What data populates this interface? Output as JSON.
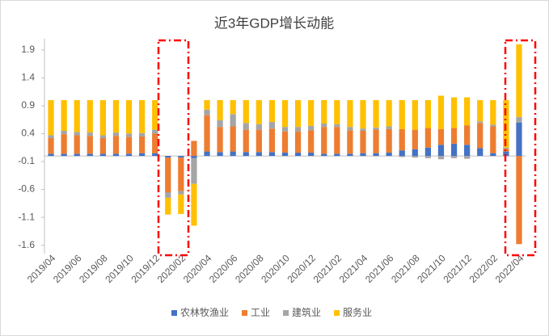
{
  "chart_data": {
    "type": "bar",
    "stacked": true,
    "title": "近3年GDP增长动能",
    "categories": [
      "2019/04",
      null,
      "2019/06",
      null,
      "2019/08",
      null,
      "2019/10",
      null,
      "2019/12",
      null,
      "2020/02",
      null,
      "2020/04",
      null,
      "2020/06",
      null,
      "2020/08",
      null,
      "2020/10",
      null,
      "2020/12",
      null,
      "2021/02",
      null,
      "2021/04",
      null,
      "2021/06",
      null,
      "2021/08",
      null,
      "2021/10",
      null,
      "2021/12",
      null,
      "2022/02",
      null,
      "2022/04"
    ],
    "series": [
      {
        "name": "农林牧渔业",
        "color": "#4472c4",
        "values": [
          0.04,
          0.04,
          0.04,
          0.04,
          0.04,
          0.04,
          0.04,
          0.05,
          0.05,
          -0.03,
          -0.03,
          -0.04,
          0.08,
          0.07,
          0.08,
          0.07,
          0.07,
          0.07,
          0.06,
          0.06,
          0.06,
          0.04,
          0.04,
          0.04,
          0.05,
          0.05,
          0.06,
          0.1,
          0.12,
          0.15,
          0.2,
          0.22,
          0.2,
          0.14,
          0.05,
          0.08,
          0.6
        ]
      },
      {
        "name": "工业",
        "color": "#ed7d31",
        "values": [
          0.28,
          0.35,
          0.33,
          0.32,
          0.28,
          0.32,
          0.3,
          0.3,
          0.35,
          -0.62,
          -0.6,
          0.27,
          0.65,
          0.45,
          0.45,
          0.4,
          0.4,
          0.42,
          0.38,
          0.38,
          0.4,
          0.48,
          0.48,
          0.42,
          0.4,
          0.42,
          0.42,
          0.38,
          0.35,
          0.35,
          0.28,
          0.28,
          0.35,
          0.45,
          0.48,
          0.05,
          -1.58
        ]
      },
      {
        "name": "建筑业",
        "color": "#a5a5a5",
        "values": [
          0.05,
          0.06,
          0.06,
          0.06,
          0.05,
          0.06,
          0.06,
          0.06,
          0.07,
          -0.1,
          -0.06,
          -0.46,
          0.1,
          0.12,
          0.22,
          0.12,
          0.1,
          0.12,
          0.08,
          0.08,
          0.08,
          0.06,
          0.05,
          0.06,
          0.04,
          0.04,
          0.05,
          -0.02,
          -0.03,
          -0.04,
          -0.06,
          -0.04,
          -0.05,
          0.03,
          0.03,
          0.02,
          0.1
        ]
      },
      {
        "name": "服务业",
        "color": "#ffc000",
        "values": [
          0.63,
          0.55,
          0.57,
          0.58,
          0.63,
          0.58,
          0.6,
          0.59,
          0.53,
          -0.3,
          -0.35,
          -0.75,
          0.17,
          0.36,
          0.25,
          0.41,
          0.43,
          0.39,
          0.48,
          0.48,
          0.46,
          0.42,
          0.43,
          0.48,
          0.51,
          0.49,
          0.47,
          0.52,
          0.53,
          0.5,
          0.6,
          0.55,
          0.5,
          0.38,
          0.44,
          0.85,
          1.3
        ]
      }
    ],
    "ylim": [
      -1.75,
      2.1
    ],
    "yticks": [
      -1.6,
      -1.1,
      -0.6,
      -0.1,
      0.4,
      0.9,
      1.4,
      1.9
    ],
    "legend": "bottom"
  }
}
